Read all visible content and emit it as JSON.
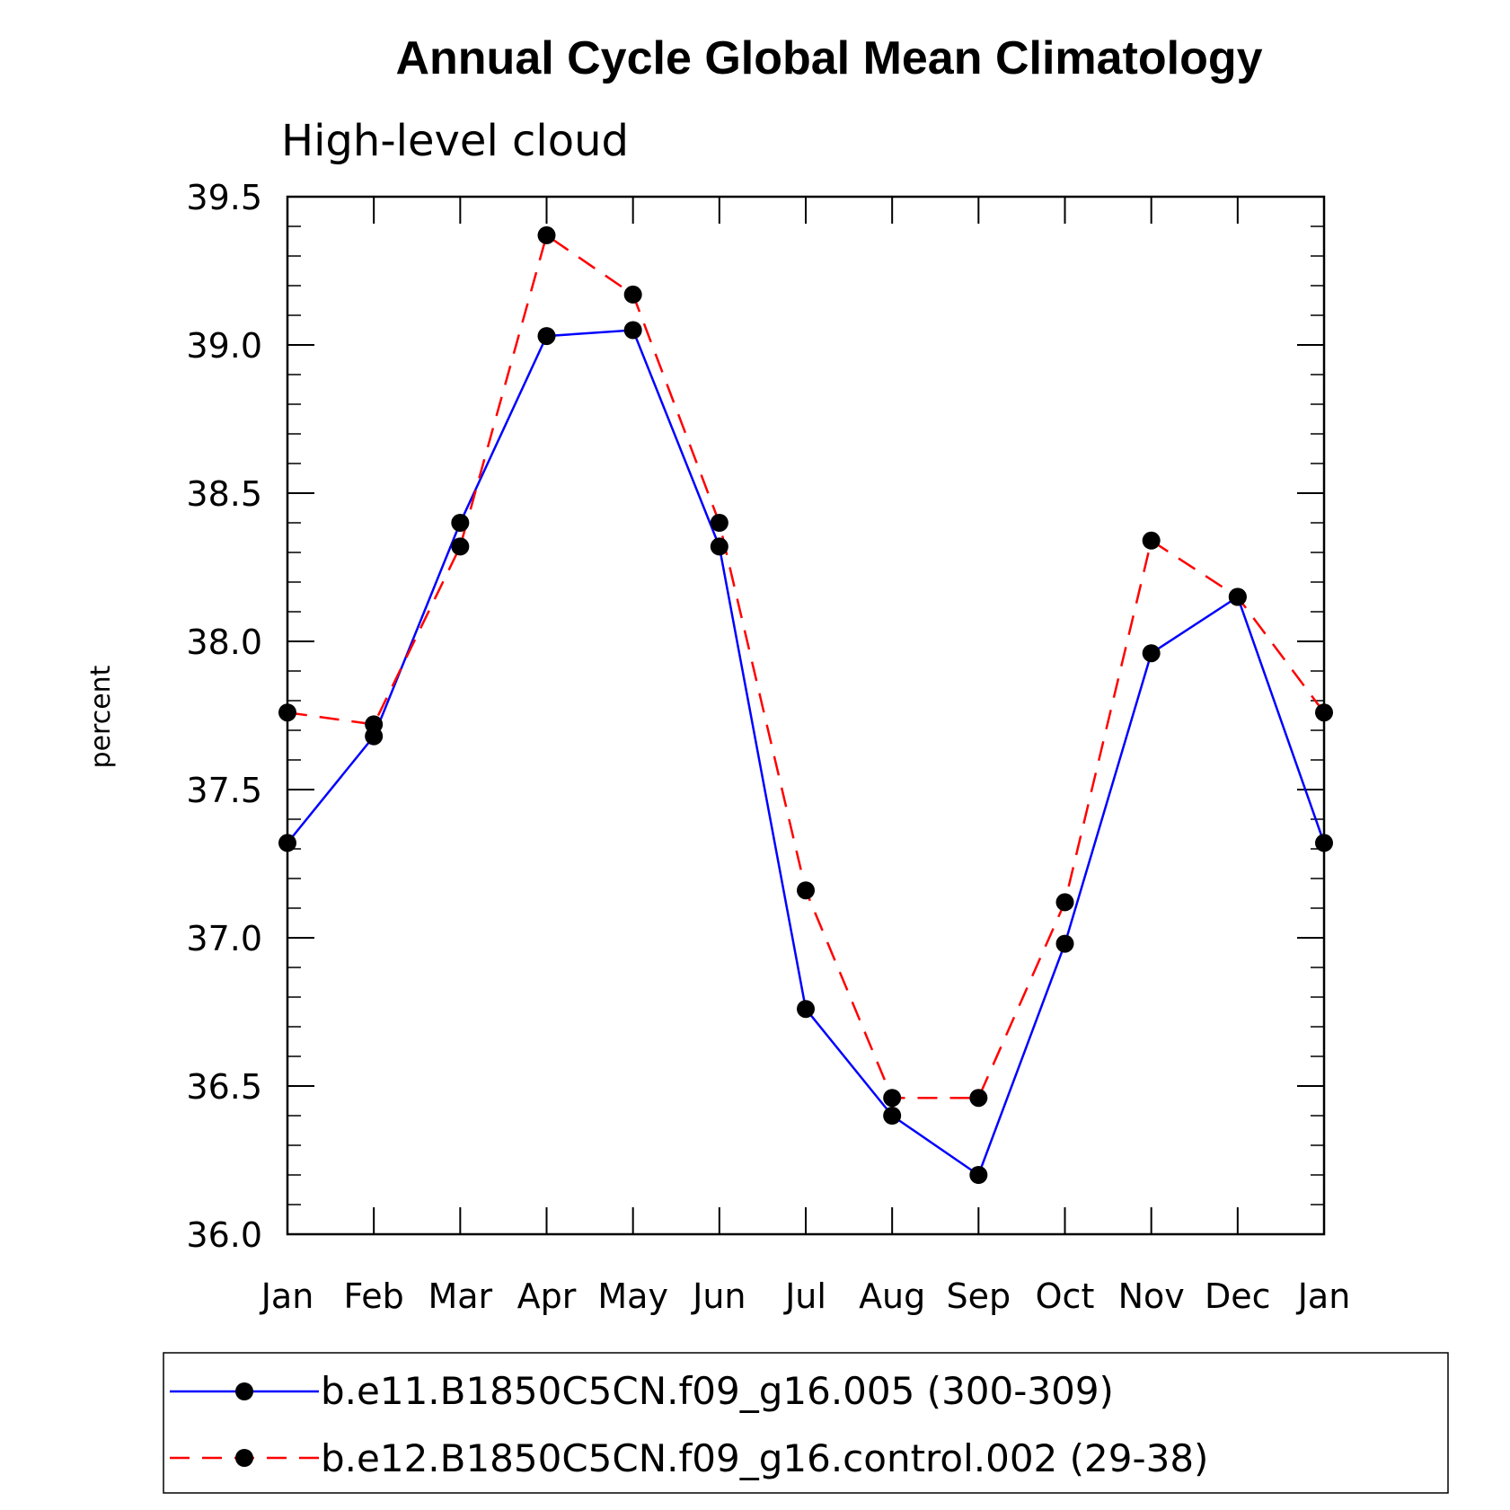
{
  "chart_data": {
    "type": "line",
    "title": "Annual Cycle Global Mean Climatology",
    "subtitle": "High-level cloud",
    "xlabel": "",
    "ylabel": "percent",
    "categories": [
      "Jan",
      "Feb",
      "Mar",
      "Apr",
      "May",
      "Jun",
      "Jul",
      "Aug",
      "Sep",
      "Oct",
      "Nov",
      "Dec",
      "Jan"
    ],
    "ylim": [
      36.0,
      39.5
    ],
    "yticks": [
      "36.0",
      "36.5",
      "37.0",
      "37.5",
      "38.0",
      "38.5",
      "39.0",
      "39.5"
    ],
    "series": [
      {
        "name": "b.e11.B1850C5CN.f09_g16.005 (300-309)",
        "color": "#0000ff",
        "style": "solid",
        "values": [
          37.32,
          37.68,
          38.4,
          39.03,
          39.05,
          38.32,
          36.76,
          36.4,
          36.2,
          36.98,
          37.96,
          38.15,
          37.32
        ]
      },
      {
        "name": "b.e12.B1850C5CN.f09_g16.control.002 (29-38)",
        "color": "#ff0000",
        "style": "dashed",
        "values": [
          37.76,
          37.72,
          38.32,
          39.37,
          39.17,
          38.4,
          37.16,
          36.46,
          36.46,
          37.12,
          38.34,
          38.15,
          37.76
        ]
      }
    ],
    "legend_position": "bottom"
  }
}
